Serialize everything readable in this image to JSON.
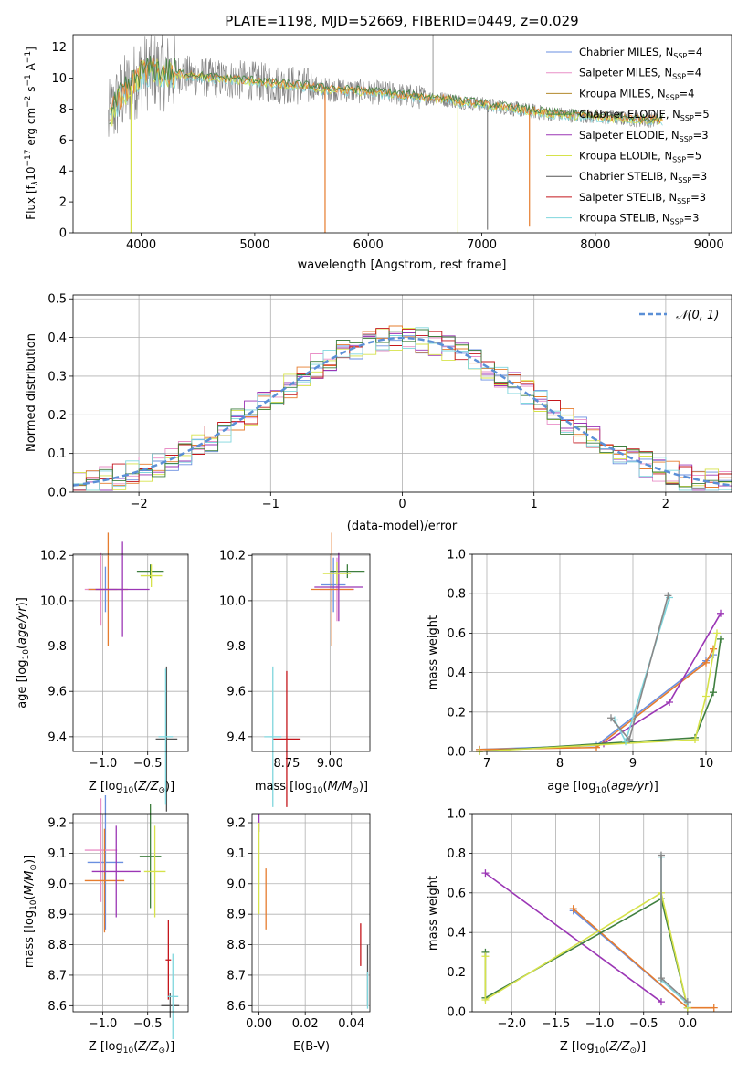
{
  "chart_data": [
    {
      "id": "spectrum",
      "type": "line",
      "title": "PLATE=1198, MJD=52669, FIBERID=0449, z=0.029",
      "xlabel": "wavelength [Angstrom, rest frame]",
      "ylabel": "Flux [f_λ 10^-17 erg cm^-2 s^-1 A^-1]",
      "xlim": [
        3400,
        9200
      ],
      "ylim": [
        0,
        12.8
      ],
      "xticks": [
        4000,
        5000,
        6000,
        7000,
        8000,
        9000
      ],
      "yticks": [
        0,
        2,
        4,
        6,
        8,
        10,
        12
      ],
      "grid": false,
      "legend_position": "top-right",
      "legend": [
        {
          "label": "Chabrier MILES, N_SSP=4",
          "color": "#6a8fe0"
        },
        {
          "label": "Salpeter MILES, N_SSP=4",
          "color": "#e98fc7"
        },
        {
          "label": "Kroupa MILES, N_SSP=4",
          "color": "#b28a2c"
        },
        {
          "label": "Chabrier ELODIE, N_SSP=5",
          "color": "#3f7f3f"
        },
        {
          "label": "Salpeter ELODIE, N_SSP=3",
          "color": "#9b36b5"
        },
        {
          "label": "Kroupa ELODIE, N_SSP=5",
          "color": "#d6e24a"
        },
        {
          "label": "Chabrier STELIB, N_SSP=3",
          "color": "#555555"
        },
        {
          "label": "Salpeter STELIB, N_SSP=3",
          "color": "#c4161c"
        },
        {
          "label": "Kroupa STELIB, N_SSP=3",
          "color": "#7fd6dd"
        }
      ],
      "series": [
        {
          "x": [
            3700,
            3800,
            3900,
            4000,
            4100,
            4200,
            4400,
            4600,
            4800,
            5000,
            5200,
            5400,
            5600,
            5800,
            6000,
            6200,
            6400,
            6600,
            6800,
            7000,
            7200,
            7400,
            7600,
            7800,
            8000,
            8200,
            8400,
            8600,
            8800,
            9000
          ],
          "y": [
            7.0,
            8.6,
            9.4,
            10.3,
            10.5,
            10.4,
            10.2,
            10.0,
            9.9,
            9.8,
            9.6,
            9.5,
            9.3,
            9.2,
            9.1,
            9.0,
            8.8,
            8.7,
            8.5,
            8.3,
            8.1,
            7.9,
            7.7,
            7.6,
            7.5,
            7.4,
            7.3,
            7.3,
            7.3,
            7.4
          ]
        }
      ]
    },
    {
      "id": "residuals",
      "type": "line",
      "xlabel": "(data-model)/error",
      "ylabel": "Normed distribution",
      "xlim": [
        -2.5,
        2.5
      ],
      "ylim": [
        0,
        0.51
      ],
      "xticks": [
        -2,
        -1,
        0,
        1,
        2
      ],
      "yticks": [
        0.0,
        0.1,
        0.2,
        0.3,
        0.4,
        0.5
      ],
      "grid": true,
      "legend_position": "top-right",
      "legend": [
        {
          "label": "𝒩(0, 1)",
          "color": "#5b8fd6"
        }
      ],
      "curve": "N(0,1)",
      "hist_bin_width": 0.1
    },
    {
      "id": "age-vs-Z",
      "type": "scatter",
      "xlabel": "Z [log10(Z/Z☉)]",
      "ylabel": "age [log10(age/yr)]",
      "xlim": [
        -1.33,
        -0.05
      ],
      "ylim": [
        9.335,
        10.205
      ],
      "xticks": [
        -1.0,
        -0.5
      ],
      "xticklabels": [
        "−1.0",
        "−0.5"
      ],
      "yticks": [
        9.4,
        9.6,
        9.8,
        10.0,
        10.2
      ],
      "yticklabels": [
        "9.4",
        "9.6",
        "9.8",
        "10.0",
        "10.2"
      ],
      "grid": true,
      "points": [
        {
          "x": -0.97,
          "y": 10.05,
          "xerr": 0.2,
          "yerr": 0.1,
          "c": "#6a8fe0"
        },
        {
          "x": -1.02,
          "y": 10.05,
          "xerr": 0.18,
          "yerr": 0.16,
          "c": "#e98fc7"
        },
        {
          "x": -0.94,
          "y": 10.05,
          "xerr": 0.22,
          "yerr": 0.25,
          "c": "#e67c2e"
        },
        {
          "x": -0.47,
          "y": 10.13,
          "xerr": 0.15,
          "yerr": 0.03,
          "c": "#3f7f3f"
        },
        {
          "x": -0.78,
          "y": 10.05,
          "xerr": 0.3,
          "yerr": 0.21,
          "c": "#9b36b5"
        },
        {
          "x": -0.46,
          "y": 10.11,
          "xerr": 0.12,
          "yerr": 0.05,
          "c": "#d6e24a"
        },
        {
          "x": -0.29,
          "y": 9.39,
          "xerr": 0.12,
          "yerr": 0.32,
          "c": "#555555"
        },
        {
          "x": -0.3,
          "y": 9.4,
          "xerr": 0.08,
          "yerr": 0.3,
          "c": "#7fd6dd"
        }
      ]
    },
    {
      "id": "age-vs-mass",
      "type": "scatter",
      "xlabel": "mass [log10(M/M☉)]",
      "ylabel": "",
      "xlim": [
        8.55,
        9.23
      ],
      "ylim": [
        9.335,
        10.205
      ],
      "xticks": [
        8.75,
        9.0
      ],
      "xticklabels": [
        "8.75",
        "9.00"
      ],
      "yticks": [
        9.4,
        9.6,
        9.8,
        10.0,
        10.2
      ],
      "yticklabels": [
        "9.4",
        "9.6",
        "9.8",
        "10.0",
        "10.2"
      ],
      "grid": true,
      "points": [
        {
          "x": 9.02,
          "y": 10.07,
          "xerr": 0.07,
          "yerr": 0.12,
          "c": "#6a8fe0"
        },
        {
          "x": 9.04,
          "y": 10.05,
          "xerr": 0.1,
          "yerr": 0.14,
          "c": "#e98fc7"
        },
        {
          "x": 9.01,
          "y": 10.05,
          "xerr": 0.12,
          "yerr": 0.25,
          "c": "#e67c2e"
        },
        {
          "x": 9.1,
          "y": 10.13,
          "xerr": 0.1,
          "yerr": 0.03,
          "c": "#3f7f3f"
        },
        {
          "x": 9.05,
          "y": 10.06,
          "xerr": 0.14,
          "yerr": 0.15,
          "c": "#9b36b5"
        },
        {
          "x": 9.04,
          "y": 10.12,
          "xerr": 0.08,
          "yerr": 0.05,
          "c": "#d6e24a"
        },
        {
          "x": 8.75,
          "y": 9.39,
          "xerr": 0.08,
          "yerr": 0.3,
          "c": "#c4161c"
        },
        {
          "x": 8.67,
          "y": 9.4,
          "xerr": 0.05,
          "yerr": 0.31,
          "c": "#7fd6dd"
        }
      ]
    },
    {
      "id": "mass-weight-vs-age",
      "type": "line",
      "xlabel": "age [log10(age/yr)]",
      "ylabel": "mass weight",
      "xlim": [
        6.8,
        10.35
      ],
      "ylim": [
        0,
        1.0
      ],
      "xticks": [
        7,
        8,
        9,
        10
      ],
      "yticks": [
        0.0,
        0.2,
        0.4,
        0.6,
        0.8,
        1.0
      ],
      "grid": true,
      "series": [
        {
          "c": "#6a8fe0",
          "x": [
            6.9,
            8.5,
            10.0,
            10.1
          ],
          "y": [
            0.01,
            0.03,
            0.46,
            0.49
          ]
        },
        {
          "c": "#e67c2e",
          "x": [
            6.9,
            8.5,
            10.0,
            10.1
          ],
          "y": [
            0.01,
            0.02,
            0.45,
            0.52
          ]
        },
        {
          "c": "#9b36b5",
          "x": [
            8.6,
            9.5,
            10.2
          ],
          "y": [
            0.04,
            0.25,
            0.7
          ]
        },
        {
          "c": "#3f7f3f",
          "x": [
            6.9,
            9.85,
            10.1,
            10.2
          ],
          "y": [
            0.0,
            0.07,
            0.3,
            0.57
          ]
        },
        {
          "c": "#d6e24a",
          "x": [
            6.9,
            9.85,
            10.0,
            10.15
          ],
          "y": [
            0.0,
            0.06,
            0.28,
            0.6
          ]
        },
        {
          "c": "#7fd6dd",
          "x": [
            8.75,
            8.9,
            9.5
          ],
          "y": [
            0.16,
            0.05,
            0.78
          ]
        },
        {
          "c": "#888888",
          "x": [
            8.7,
            8.95,
            9.48
          ],
          "y": [
            0.17,
            0.06,
            0.79
          ]
        }
      ]
    },
    {
      "id": "mass-vs-Z",
      "type": "scatter",
      "xlabel": "Z [log10(Z/Z☉)]",
      "ylabel": "mass [log10(M/M☉)]",
      "xlim": [
        -1.33,
        -0.05
      ],
      "ylim": [
        8.58,
        9.23
      ],
      "xticks": [
        -1.0,
        -0.5
      ],
      "xticklabels": [
        "−1.0",
        "−0.5"
      ],
      "yticks": [
        8.6,
        8.7,
        8.8,
        8.9,
        9.0,
        9.1,
        9.2
      ],
      "yticklabels": [
        "8.6",
        "8.7",
        "8.8",
        "8.9",
        "9.0",
        "9.1",
        "9.2"
      ],
      "grid": true,
      "points": [
        {
          "x": -0.97,
          "y": 9.07,
          "xerr": 0.2,
          "yerr": 0.22,
          "c": "#6a8fe0"
        },
        {
          "x": -1.02,
          "y": 9.11,
          "xerr": 0.18,
          "yerr": 0.17,
          "c": "#e98fc7"
        },
        {
          "x": -0.98,
          "y": 9.01,
          "xerr": 0.22,
          "yerr": 0.17,
          "c": "#e67c2e"
        },
        {
          "x": -0.47,
          "y": 9.09,
          "xerr": 0.12,
          "yerr": 0.17,
          "c": "#3f7f3f"
        },
        {
          "x": -0.85,
          "y": 9.04,
          "xerr": 0.27,
          "yerr": 0.15,
          "c": "#9b36b5"
        },
        {
          "x": -0.42,
          "y": 9.04,
          "xerr": 0.12,
          "yerr": 0.15,
          "c": "#d6e24a"
        },
        {
          "x": -0.27,
          "y": 8.75,
          "xerr": 0.03,
          "yerr": 0.13,
          "c": "#c4161c"
        },
        {
          "x": -0.25,
          "y": 8.6,
          "xerr": 0.1,
          "yerr": 0.04,
          "c": "#555555"
        },
        {
          "x": -0.22,
          "y": 8.63,
          "xerr": 0.06,
          "yerr": 0.14,
          "c": "#7fd6dd"
        }
      ]
    },
    {
      "id": "mass-vs-EBV",
      "type": "scatter",
      "xlabel": "E(B-V)",
      "ylabel": "",
      "xlim": [
        -0.003,
        0.048
      ],
      "ylim": [
        8.58,
        9.23
      ],
      "xticks": [
        0.0,
        0.02,
        0.04
      ],
      "xticklabels": [
        "0.00",
        "0.02",
        "0.04"
      ],
      "yticks": [
        8.6,
        8.7,
        8.8,
        8.9,
        9.0,
        9.1,
        9.2
      ],
      "yticklabels": [
        "8.6",
        "8.7",
        "8.8",
        "8.9",
        "9.0",
        "9.1",
        "9.2"
      ],
      "grid": true,
      "points": [
        {
          "x": 0.0,
          "y": 9.2,
          "xerr": 0,
          "yerr": 0.03,
          "c": "#9b36b5"
        },
        {
          "x": 0.0,
          "y": 9.05,
          "xerr": 0,
          "yerr": 0.15,
          "c": "#d6e24a"
        },
        {
          "x": 0.003,
          "y": 8.95,
          "xerr": 0,
          "yerr": 0.1,
          "c": "#e67c2e"
        },
        {
          "x": 0.044,
          "y": 8.8,
          "xerr": 0,
          "yerr": 0.07,
          "c": "#c4161c"
        },
        {
          "x": 0.047,
          "y": 8.7,
          "xerr": 0,
          "yerr": 0.1,
          "c": "#555555"
        },
        {
          "x": 0.047,
          "y": 8.65,
          "xerr": 0,
          "yerr": 0.06,
          "c": "#7fd6dd"
        }
      ]
    },
    {
      "id": "mass-weight-vs-Z",
      "type": "line",
      "xlabel": "Z [log10(Z/Z☉)]",
      "ylabel": "mass weight",
      "xlim": [
        -2.45,
        0.5
      ],
      "ylim": [
        0,
        1.0
      ],
      "xticks": [
        -2.0,
        -1.5,
        -1.0,
        -0.5,
        0.0
      ],
      "xticklabels": [
        "−2.0",
        "−1.5",
        "−1.0",
        "−0.5",
        "0.0"
      ],
      "yticks": [
        0.0,
        0.2,
        0.4,
        0.6,
        0.8,
        1.0
      ],
      "grid": true,
      "series": [
        {
          "c": "#9b36b5",
          "x": [
            -2.3,
            -0.3
          ],
          "y": [
            0.7,
            0.05
          ]
        },
        {
          "c": "#6a8fe0",
          "x": [
            -1.3,
            0.0,
            0.0
          ],
          "y": [
            0.51,
            0.02,
            0.05
          ]
        },
        {
          "c": "#e67c2e",
          "x": [
            -1.3,
            0.0,
            0.3
          ],
          "y": [
            0.52,
            0.02,
            0.02
          ]
        },
        {
          "c": "#3f7f3f",
          "x": [
            -2.3,
            -2.3,
            -0.3,
            0.0
          ],
          "y": [
            0.3,
            0.07,
            0.57,
            0.02
          ]
        },
        {
          "c": "#d6e24a",
          "x": [
            -2.3,
            -2.3,
            -0.3,
            0.0
          ],
          "y": [
            0.28,
            0.06,
            0.6,
            0.02
          ]
        },
        {
          "c": "#7fd6dd",
          "x": [
            -0.3,
            -0.3,
            0.0
          ],
          "y": [
            0.78,
            0.16,
            0.04
          ]
        },
        {
          "c": "#888888",
          "x": [
            -0.3,
            -0.3,
            0.0
          ],
          "y": [
            0.79,
            0.17,
            0.05
          ]
        }
      ]
    }
  ]
}
